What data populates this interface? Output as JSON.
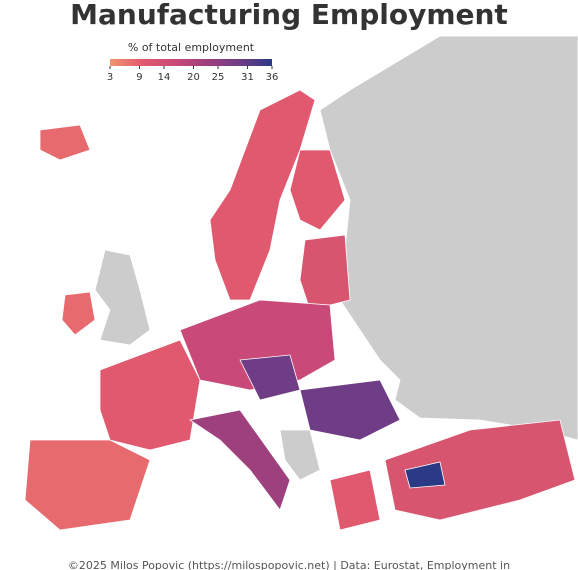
{
  "title": "Manufacturing Employment",
  "legend": {
    "title": "% of total employment",
    "lim": [
      3,
      36
    ],
    "ticks": [
      3,
      9,
      14,
      20,
      25,
      31,
      36
    ],
    "colors": [
      "#f0946e",
      "#e0596f",
      "#c94a78",
      "#9e3f7e",
      "#6e3d86",
      "#2b3a84"
    ]
  },
  "caption": "©2025 Milos Popovic (https://milospopovic.net) | Data: Eurostat, Employment in"
}
